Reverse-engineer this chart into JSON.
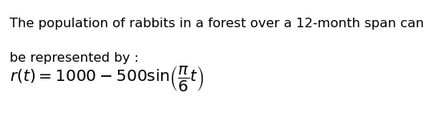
{
  "background_color": "#ffffff",
  "text_line1": "The population of rabbits in a forest over a 12-month span can",
  "text_line2": "be represented by :",
  "formula_text": "$r(t) = 1000 - 500\\mathrm{sin}\\left(\\dfrac{\\pi}{6}t\\right)$",
  "text_color": "#000000",
  "text_fontsize": 11.8,
  "formula_fontsize": 14.5,
  "fig_width": 5.51,
  "fig_height": 1.61,
  "dpi": 100
}
